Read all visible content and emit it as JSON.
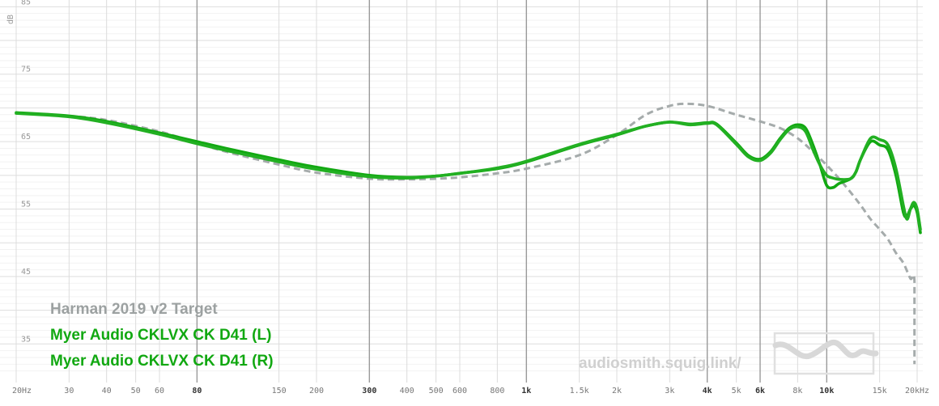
{
  "chart_data": {
    "type": "line",
    "xscale": "log",
    "xlim": [
      20,
      20000
    ],
    "ylim": [
      30,
      86
    ],
    "ylabel": "dB",
    "yticks": [
      85,
      75,
      65,
      55,
      45,
      35
    ],
    "xticks": [
      {
        "value": 20,
        "label": "20Hz"
      },
      {
        "value": 30,
        "label": "30"
      },
      {
        "value": 40,
        "label": "40"
      },
      {
        "value": 50,
        "label": "50"
      },
      {
        "value": 60,
        "label": "60"
      },
      {
        "value": 80,
        "label": "80",
        "major": true
      },
      {
        "value": 150,
        "label": "150"
      },
      {
        "value": 200,
        "label": "200"
      },
      {
        "value": 300,
        "label": "300",
        "major": true
      },
      {
        "value": 400,
        "label": "400"
      },
      {
        "value": 500,
        "label": "500"
      },
      {
        "value": 600,
        "label": "600"
      },
      {
        "value": 800,
        "label": "800"
      },
      {
        "value": 1000,
        "label": "1k",
        "major": true
      },
      {
        "value": 1500,
        "label": "1.5k"
      },
      {
        "value": 2000,
        "label": "2k"
      },
      {
        "value": 3000,
        "label": "3k"
      },
      {
        "value": 4000,
        "label": "4k",
        "major": true
      },
      {
        "value": 5000,
        "label": "5k"
      },
      {
        "value": 6000,
        "label": "6k",
        "major": true
      },
      {
        "value": 8000,
        "label": "8k"
      },
      {
        "value": 10000,
        "label": "10k",
        "major": true
      },
      {
        "value": 15000,
        "label": "15k"
      },
      {
        "value": 20000,
        "label": "20kHz"
      }
    ],
    "grid": true,
    "legend_position": "bottom-left",
    "watermark": "audiosmith.squig.link/",
    "series": [
      {
        "name": "Harman 2019 v2 Target",
        "color": "#a0a6a6",
        "dashed": true,
        "points": [
          [
            20,
            69.2
          ],
          [
            30,
            68.8
          ],
          [
            40,
            68.2
          ],
          [
            60,
            66.5
          ],
          [
            80,
            64.8
          ],
          [
            100,
            63.5
          ],
          [
            150,
            61.6
          ],
          [
            200,
            60.4
          ],
          [
            300,
            59.5
          ],
          [
            400,
            59.4
          ],
          [
            500,
            59.5
          ],
          [
            600,
            59.7
          ],
          [
            800,
            60.3
          ],
          [
            1000,
            61.0
          ],
          [
            1500,
            63.0
          ],
          [
            2000,
            66.0
          ],
          [
            2500,
            69.0
          ],
          [
            3000,
            70.3
          ],
          [
            3400,
            70.6
          ],
          [
            4000,
            70.3
          ],
          [
            5000,
            69.0
          ],
          [
            6000,
            68.0
          ],
          [
            7000,
            67.0
          ],
          [
            8000,
            65.5
          ],
          [
            9000,
            63.5
          ],
          [
            10000,
            61.5
          ],
          [
            11000,
            59.5
          ],
          [
            12000,
            57.5
          ],
          [
            13000,
            55.5
          ],
          [
            14000,
            53.5
          ],
          [
            15000,
            52.0
          ],
          [
            16000,
            50.5
          ],
          [
            17000,
            48.5
          ],
          [
            18000,
            47.0
          ],
          [
            19000,
            44.7
          ],
          [
            19600,
            44.3
          ],
          [
            19600,
            32.0
          ]
        ]
      },
      {
        "name": "Myer Audio CKLVX CK D41 (L)",
        "color": "#11a811",
        "dashed": false,
        "points": [
          [
            20,
            69.3
          ],
          [
            30,
            68.8
          ],
          [
            40,
            68.0
          ],
          [
            60,
            66.3
          ],
          [
            80,
            65.0
          ],
          [
            100,
            64.0
          ],
          [
            150,
            62.3
          ],
          [
            200,
            61.2
          ],
          [
            300,
            60.0
          ],
          [
            400,
            59.7
          ],
          [
            500,
            59.9
          ],
          [
            600,
            60.3
          ],
          [
            800,
            61.0
          ],
          [
            1000,
            62.0
          ],
          [
            1500,
            64.5
          ],
          [
            2000,
            66.0
          ],
          [
            2500,
            67.3
          ],
          [
            3000,
            67.9
          ],
          [
            3500,
            67.6
          ],
          [
            4000,
            67.8
          ],
          [
            4300,
            67.6
          ],
          [
            5000,
            64.8
          ],
          [
            5500,
            62.9
          ],
          [
            6000,
            62.4
          ],
          [
            6500,
            63.5
          ],
          [
            7000,
            65.5
          ],
          [
            7500,
            67.0
          ],
          [
            8000,
            67.5
          ],
          [
            8500,
            67.0
          ],
          [
            9000,
            64.5
          ],
          [
            9500,
            61.5
          ],
          [
            10000,
            58.5
          ],
          [
            10500,
            58.2
          ],
          [
            11000,
            58.8
          ],
          [
            12000,
            59.5
          ],
          [
            12500,
            60.5
          ],
          [
            13000,
            62.5
          ],
          [
            14000,
            65.0
          ],
          [
            15000,
            64.5
          ],
          [
            16000,
            63.8
          ],
          [
            17000,
            60.0
          ],
          [
            18000,
            54.5
          ],
          [
            18500,
            54.0
          ],
          [
            19000,
            55.0
          ],
          [
            19500,
            55.5
          ],
          [
            20000,
            54.5
          ],
          [
            20500,
            51.5
          ]
        ]
      },
      {
        "name": "Myer Audio CKLVX CK D41 (R)",
        "color": "#22b022",
        "dashed": false,
        "points": [
          [
            20,
            69.2
          ],
          [
            30,
            68.7
          ],
          [
            40,
            67.8
          ],
          [
            60,
            66.1
          ],
          [
            80,
            64.7
          ],
          [
            100,
            63.7
          ],
          [
            150,
            62.0
          ],
          [
            200,
            60.9
          ],
          [
            300,
            59.8
          ],
          [
            400,
            59.6
          ],
          [
            500,
            59.9
          ],
          [
            600,
            60.3
          ],
          [
            800,
            61.1
          ],
          [
            1000,
            62.1
          ],
          [
            1500,
            64.6
          ],
          [
            2000,
            66.1
          ],
          [
            2500,
            67.3
          ],
          [
            3000,
            67.9
          ],
          [
            3500,
            67.5
          ],
          [
            4000,
            67.7
          ],
          [
            4300,
            67.5
          ],
          [
            5000,
            64.6
          ],
          [
            5500,
            62.7
          ],
          [
            6000,
            62.2
          ],
          [
            6500,
            63.3
          ],
          [
            7000,
            65.3
          ],
          [
            7500,
            66.8
          ],
          [
            8000,
            67.2
          ],
          [
            8500,
            66.5
          ],
          [
            9000,
            63.8
          ],
          [
            9500,
            61.5
          ],
          [
            10000,
            60.0
          ],
          [
            10500,
            59.6
          ],
          [
            11000,
            59.4
          ],
          [
            12000,
            59.5
          ],
          [
            12500,
            60.5
          ],
          [
            13000,
            62.5
          ],
          [
            14000,
            65.5
          ],
          [
            15000,
            65.3
          ],
          [
            16000,
            64.5
          ],
          [
            17000,
            61.0
          ],
          [
            18000,
            55.5
          ],
          [
            18500,
            53.5
          ],
          [
            19000,
            55.0
          ],
          [
            19500,
            56.0
          ],
          [
            20000,
            55.0
          ],
          [
            20500,
            52.0
          ]
        ]
      }
    ]
  }
}
